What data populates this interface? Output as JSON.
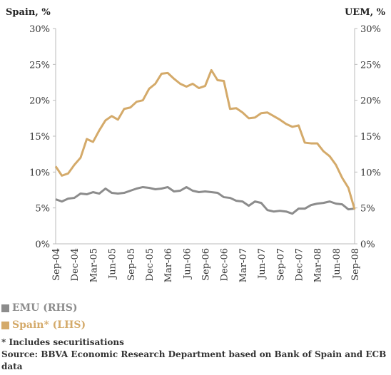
{
  "chart_data": {
    "type": "line",
    "y_label": "Spain, %",
    "y2_label": "UEM, %",
    "categories": [
      "Sep-04",
      null,
      null,
      "Dec-04",
      null,
      null,
      "Mar-05",
      null,
      null,
      "Jun-05",
      null,
      null,
      "Sep-05",
      null,
      null,
      "Dec-05",
      null,
      null,
      "Mar-06",
      null,
      null,
      "Jun-06",
      null,
      null,
      "Sep-06",
      null,
      null,
      "Dec-06",
      null,
      null,
      "Mar-07",
      null,
      null,
      "Jun-07",
      null,
      null,
      "Sep-07",
      null,
      null,
      "Dec-07",
      null,
      null,
      "Mar-08",
      null,
      null,
      "Jun-08",
      null,
      null,
      "Sep-08"
    ],
    "series": [
      {
        "name": "EMU (RHS)",
        "color": "#8c8c8c",
        "axis": "y2",
        "values": [
          6.2,
          5.9,
          6.3,
          6.4,
          7.0,
          6.9,
          7.2,
          7.0,
          7.7,
          7.1,
          7.0,
          7.1,
          7.4,
          7.7,
          7.9,
          7.8,
          7.6,
          7.7,
          7.9,
          7.3,
          7.4,
          7.9,
          7.4,
          7.2,
          7.3,
          7.2,
          7.1,
          6.5,
          6.4,
          6.0,
          5.9,
          5.3,
          5.9,
          5.7,
          4.7,
          4.5,
          4.6,
          4.5,
          4.2,
          4.9,
          4.9,
          5.4,
          5.6,
          5.7,
          5.9,
          5.6,
          5.5,
          4.8,
          4.9
        ]
      },
      {
        "name": "Spain* (LHS)",
        "color": "#d4aa6a",
        "values": [
          10.8,
          9.5,
          9.8,
          11.0,
          12.0,
          14.6,
          14.2,
          15.8,
          17.2,
          17.8,
          17.3,
          18.8,
          19.0,
          19.8,
          20.0,
          21.6,
          22.3,
          23.7,
          23.8,
          23.0,
          22.3,
          21.9,
          22.3,
          21.7,
          22.0,
          24.2,
          22.8,
          22.7,
          18.8,
          18.9,
          18.3,
          17.5,
          17.6,
          18.2,
          18.3,
          17.8,
          17.3,
          16.7,
          16.3,
          16.5,
          14.1,
          14.0,
          14.0,
          12.9,
          12.2,
          11.0,
          9.2,
          7.8,
          4.8
        ]
      }
    ],
    "ylim": [
      0,
      30
    ],
    "yticks": [
      {
        "value": 0,
        "label": "0%"
      },
      {
        "value": 5,
        "label": "5%"
      },
      {
        "value": 10,
        "label": "10%"
      },
      {
        "value": 15,
        "label": "15%"
      },
      {
        "value": 20,
        "label": "20%"
      },
      {
        "value": 25,
        "label": "25%"
      },
      {
        "value": 30,
        "label": "30%"
      }
    ],
    "y2lim": [
      0,
      30
    ],
    "y2ticks": [
      {
        "value": 0,
        "label": "0%"
      },
      {
        "value": 5,
        "label": "5%"
      },
      {
        "value": 10,
        "label": "10%"
      },
      {
        "value": 15,
        "label": "15%"
      },
      {
        "value": 20,
        "label": "20%"
      },
      {
        "value": 25,
        "label": "25%"
      },
      {
        "value": 30,
        "label": "30%"
      }
    ],
    "grid": false,
    "notes": [
      "* Includes securitisations",
      "Source: BBVA Economic Research Department based on Bank of Spain and ECB data"
    ]
  }
}
